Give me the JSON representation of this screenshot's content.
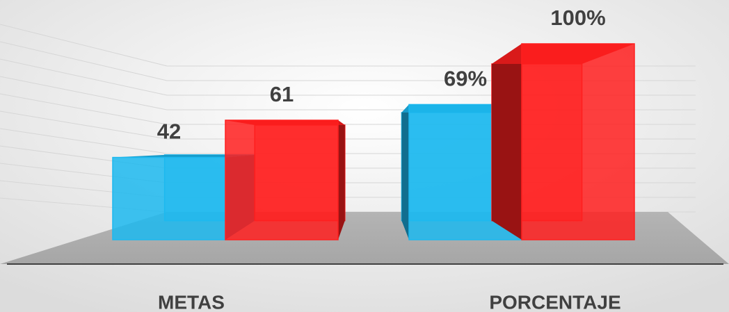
{
  "chart_data": {
    "type": "bar3d",
    "categories": [
      "METAS",
      "PORCENTAJE"
    ],
    "series": [
      {
        "color": "#1cb8ef",
        "values": [
          42,
          69
        ],
        "value_labels": [
          "42",
          "69%"
        ]
      },
      {
        "color": "#ff1f1f",
        "values": [
          61,
          100
        ],
        "value_labels": [
          "61",
          "100%"
        ]
      }
    ]
  }
}
